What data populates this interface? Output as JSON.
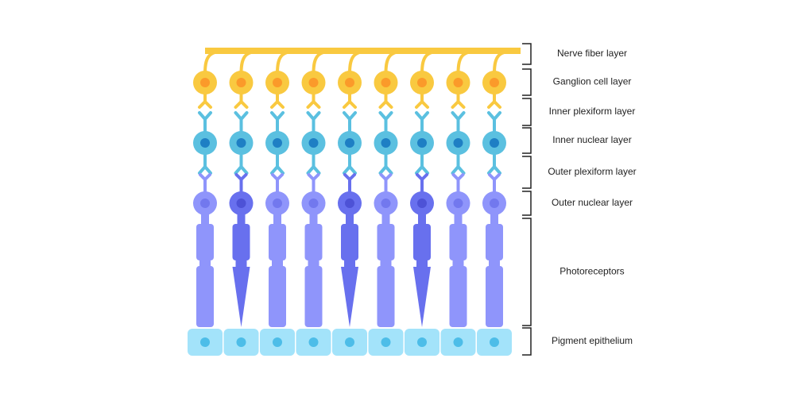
{
  "layers": [
    {
      "label": "Nerve fiber layer"
    },
    {
      "label": "Ganglion cell layer"
    },
    {
      "label": "Inner plexiform layer"
    },
    {
      "label": "Inner nuclear layer"
    },
    {
      "label": "Outer plexiform layer"
    },
    {
      "label": "Outer nuclear layer"
    },
    {
      "label": "Photoreceptors"
    },
    {
      "label": "Pigment epithelium"
    }
  ]
}
